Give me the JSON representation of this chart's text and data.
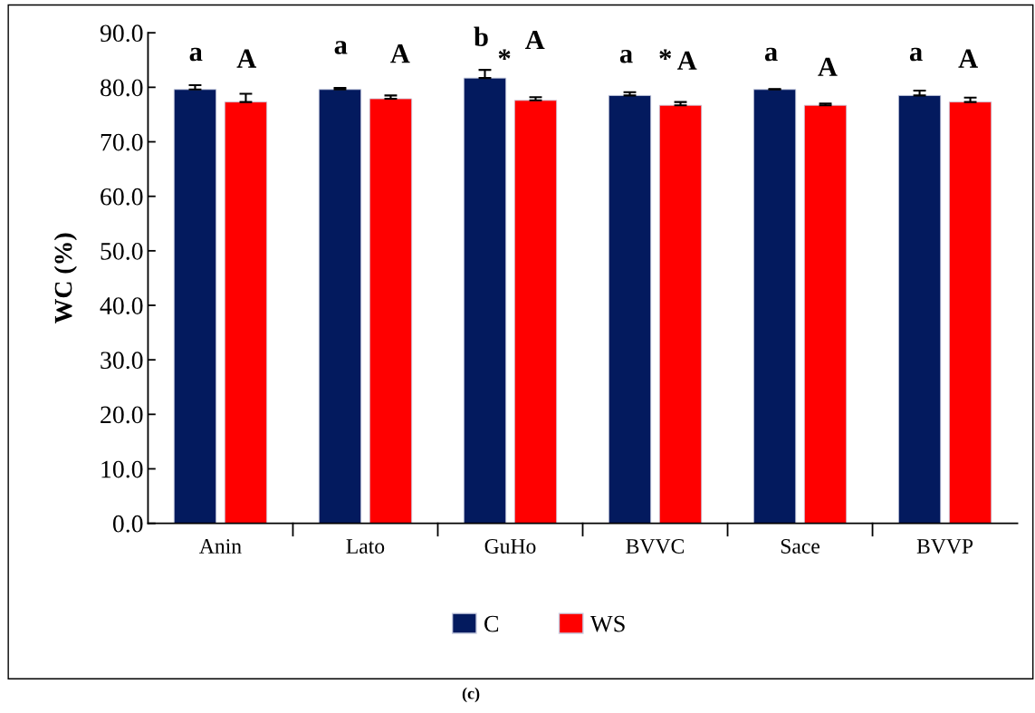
{
  "chart_data": {
    "type": "bar",
    "ylabel": "WC (%)",
    "categories": [
      "Anin",
      "Lato",
      "GuHo",
      "BVVC",
      "Sace",
      "BVVP"
    ],
    "series": [
      {
        "name": "C",
        "color": "#031a5e",
        "values": [
          79.6,
          79.6,
          81.7,
          78.5,
          79.6,
          78.5
        ],
        "errors": [
          0.8,
          0.3,
          1.5,
          0.6,
          0.1,
          0.9
        ]
      },
      {
        "name": "WS",
        "color": "#ff0000",
        "values": [
          77.3,
          77.9,
          77.6,
          76.7,
          76.7,
          77.3
        ],
        "errors": [
          1.5,
          0.6,
          0.6,
          0.6,
          0.3,
          0.8
        ]
      }
    ],
    "ylim": [
      0,
      90
    ],
    "yticks": [
      {
        "value": 0,
        "label": "0.0"
      },
      {
        "value": 10,
        "label": "10.0"
      },
      {
        "value": 20,
        "label": "20.0"
      },
      {
        "value": 30,
        "label": "30.0"
      },
      {
        "value": 40,
        "label": "40.0"
      },
      {
        "value": 50,
        "label": "50.0"
      },
      {
        "value": 60,
        "label": "60.0"
      },
      {
        "value": 70,
        "label": "70.0"
      },
      {
        "value": 80,
        "label": "80.0"
      },
      {
        "value": 90,
        "label": "90.0"
      }
    ],
    "grid": false,
    "legend": "bottom",
    "annotations": [
      "a",
      "A",
      "a",
      "A",
      "b",
      "*",
      "A",
      "a",
      "*",
      "A",
      "a",
      "A",
      "a",
      "A",
      "(c)"
    ]
  }
}
